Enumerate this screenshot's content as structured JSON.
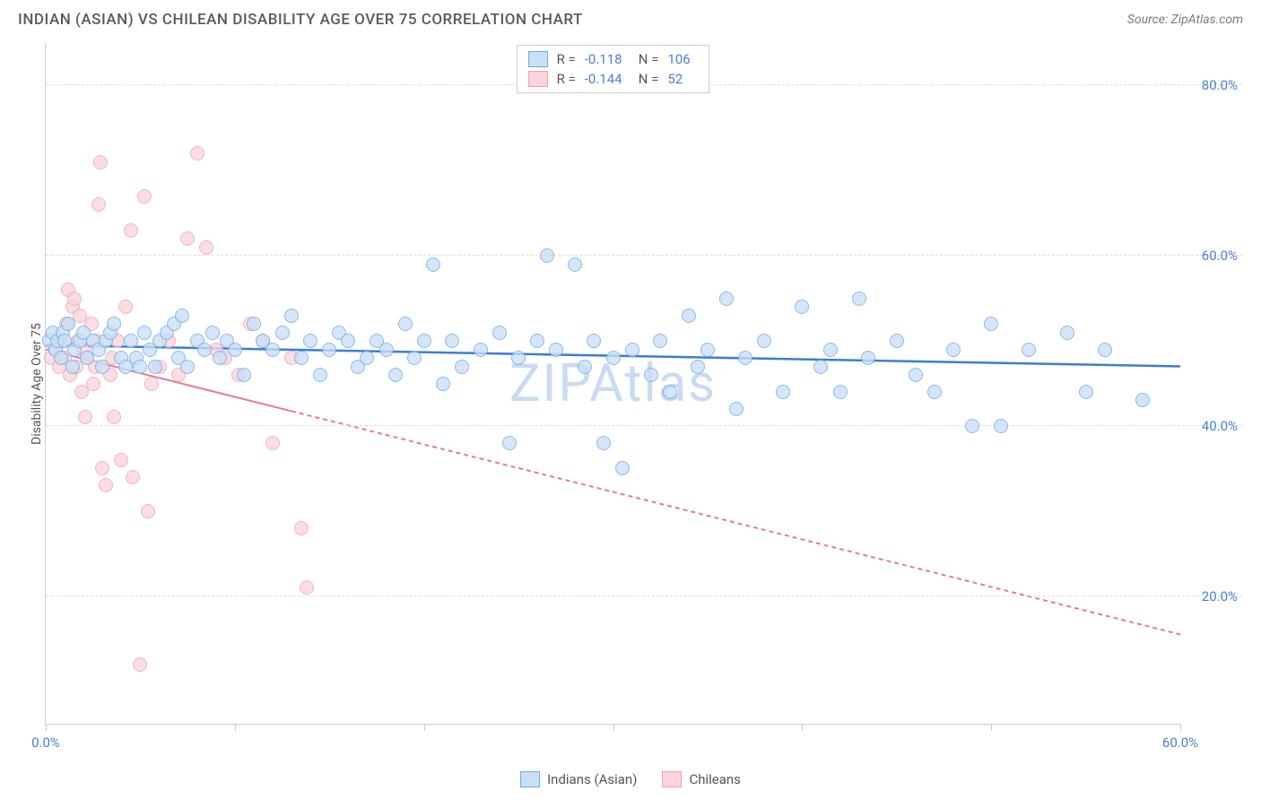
{
  "title": "INDIAN (ASIAN) VS CHILEAN DISABILITY AGE OVER 75 CORRELATION CHART",
  "source": "Source: ZipAtlas.com",
  "watermark": "ZIPAtlas",
  "watermark_color": "#c9dbf2",
  "y_axis_label": "Disability Age Over 75",
  "chart": {
    "type": "scatter",
    "background_color": "#ffffff",
    "border_color": "#cccccc",
    "grid_color": "#dddddd",
    "tick_label_color": "#4a7fd6",
    "axis_label_color": "#555555",
    "xlim": [
      0,
      60
    ],
    "ylim": [
      5,
      85
    ],
    "y_ticks": [
      {
        "value": 20,
        "label": "20.0%"
      },
      {
        "value": 40,
        "label": "40.0%"
      },
      {
        "value": 60,
        "label": "60.0%"
      },
      {
        "value": 80,
        "label": "80.0%"
      }
    ],
    "x_ticks": [
      {
        "value": 0,
        "label": "0.0%"
      },
      {
        "value": 10,
        "label": ""
      },
      {
        "value": 20,
        "label": ""
      },
      {
        "value": 30,
        "label": ""
      },
      {
        "value": 40,
        "label": ""
      },
      {
        "value": 50,
        "label": ""
      },
      {
        "value": 60,
        "label": "60.0%"
      }
    ],
    "series": [
      {
        "name": "Indians (Asian)",
        "R_label": "R =",
        "R": "-0.118",
        "N_label": "N =",
        "N": "106",
        "marker_fill": "#c9dff6",
        "marker_stroke": "#6ea8e6",
        "marker_opacity": 0.78,
        "marker_radius": 8,
        "trend_color": "#3b7dd8",
        "trend_width": 2.5,
        "trend_y_at_xmin": 49.5,
        "trend_y_at_xmax": 47.0,
        "trend_solid_xmax": 60,
        "trend_dash_to_xmax": 60,
        "points": [
          [
            0.2,
            50
          ],
          [
            0.4,
            51
          ],
          [
            0.5,
            49
          ],
          [
            0.6,
            50
          ],
          [
            0.8,
            48
          ],
          [
            0.9,
            51
          ],
          [
            1.0,
            50
          ],
          [
            1.2,
            52
          ],
          [
            1.4,
            47
          ],
          [
            1.5,
            49
          ],
          [
            1.8,
            50
          ],
          [
            2.0,
            51
          ],
          [
            2.2,
            48
          ],
          [
            2.5,
            50
          ],
          [
            2.8,
            49
          ],
          [
            3.0,
            47
          ],
          [
            3.2,
            50
          ],
          [
            3.4,
            51
          ],
          [
            3.6,
            52
          ],
          [
            4.0,
            48
          ],
          [
            4.2,
            47
          ],
          [
            4.5,
            50
          ],
          [
            4.8,
            48
          ],
          [
            5.0,
            47
          ],
          [
            5.2,
            51
          ],
          [
            5.5,
            49
          ],
          [
            5.8,
            47
          ],
          [
            6.0,
            50
          ],
          [
            6.4,
            51
          ],
          [
            6.8,
            52
          ],
          [
            7.0,
            48
          ],
          [
            7.2,
            53
          ],
          [
            7.5,
            47
          ],
          [
            8.0,
            50
          ],
          [
            8.4,
            49
          ],
          [
            8.8,
            51
          ],
          [
            9.2,
            48
          ],
          [
            9.6,
            50
          ],
          [
            10.0,
            49
          ],
          [
            10.5,
            46
          ],
          [
            11.0,
            52
          ],
          [
            11.5,
            50
          ],
          [
            12.0,
            49
          ],
          [
            12.5,
            51
          ],
          [
            13.0,
            53
          ],
          [
            13.5,
            48
          ],
          [
            14.0,
            50
          ],
          [
            14.5,
            46
          ],
          [
            15.0,
            49
          ],
          [
            15.5,
            51
          ],
          [
            16.0,
            50
          ],
          [
            16.5,
            47
          ],
          [
            17.0,
            48
          ],
          [
            17.5,
            50
          ],
          [
            18.0,
            49
          ],
          [
            18.5,
            46
          ],
          [
            19.0,
            52
          ],
          [
            19.5,
            48
          ],
          [
            20.0,
            50
          ],
          [
            20.5,
            59
          ],
          [
            21.0,
            45
          ],
          [
            21.5,
            50
          ],
          [
            22.0,
            47
          ],
          [
            23.0,
            49
          ],
          [
            24.0,
            51
          ],
          [
            24.5,
            38
          ],
          [
            25.0,
            48
          ],
          [
            26.0,
            50
          ],
          [
            26.5,
            60
          ],
          [
            27.0,
            49
          ],
          [
            28.0,
            59
          ],
          [
            28.5,
            47
          ],
          [
            29.0,
            50
          ],
          [
            29.5,
            38
          ],
          [
            30.0,
            48
          ],
          [
            30.5,
            35
          ],
          [
            31.0,
            49
          ],
          [
            32.0,
            46
          ],
          [
            32.5,
            50
          ],
          [
            33.0,
            44
          ],
          [
            34.0,
            53
          ],
          [
            34.5,
            47
          ],
          [
            35.0,
            49
          ],
          [
            36.0,
            55
          ],
          [
            36.5,
            42
          ],
          [
            37.0,
            48
          ],
          [
            38.0,
            50
          ],
          [
            39.0,
            44
          ],
          [
            40.0,
            54
          ],
          [
            41.0,
            47
          ],
          [
            41.5,
            49
          ],
          [
            42.0,
            44
          ],
          [
            43.0,
            55
          ],
          [
            43.5,
            48
          ],
          [
            45.0,
            50
          ],
          [
            46.0,
            46
          ],
          [
            47.0,
            44
          ],
          [
            48.0,
            49
          ],
          [
            49.0,
            40
          ],
          [
            50.0,
            52
          ],
          [
            50.5,
            40
          ],
          [
            52.0,
            49
          ],
          [
            54.0,
            51
          ],
          [
            55.0,
            44
          ],
          [
            56.0,
            49
          ],
          [
            58.0,
            43
          ]
        ]
      },
      {
        "name": "Chileans",
        "R_label": "R =",
        "R": "-0.144",
        "N_label": "N =",
        "N": "52",
        "marker_fill": "#fad4dd",
        "marker_stroke": "#f09fb4",
        "marker_opacity": 0.78,
        "marker_radius": 8,
        "trend_color": "#e67a9a",
        "trend_width": 2,
        "trend_y_at_xmin": 49.0,
        "trend_y_at_xmax": 15.5,
        "trend_solid_xmax": 13,
        "trend_dash_to_xmax": 60,
        "points": [
          [
            0.3,
            48
          ],
          [
            0.5,
            49
          ],
          [
            0.7,
            47
          ],
          [
            0.8,
            50
          ],
          [
            1.0,
            48
          ],
          [
            1.1,
            52
          ],
          [
            1.2,
            56
          ],
          [
            1.3,
            46
          ],
          [
            1.4,
            54
          ],
          [
            1.5,
            55
          ],
          [
            1.6,
            47
          ],
          [
            1.7,
            50
          ],
          [
            1.8,
            53
          ],
          [
            1.9,
            44
          ],
          [
            2.0,
            49
          ],
          [
            2.1,
            41
          ],
          [
            2.2,
            48
          ],
          [
            2.4,
            52
          ],
          [
            2.5,
            45
          ],
          [
            2.6,
            47
          ],
          [
            2.7,
            50
          ],
          [
            2.8,
            66
          ],
          [
            2.9,
            71
          ],
          [
            3.0,
            35
          ],
          [
            3.2,
            33
          ],
          [
            3.4,
            46
          ],
          [
            3.5,
            48
          ],
          [
            3.6,
            41
          ],
          [
            3.8,
            50
          ],
          [
            4.0,
            36
          ],
          [
            4.2,
            54
          ],
          [
            4.5,
            63
          ],
          [
            4.6,
            34
          ],
          [
            5.0,
            12
          ],
          [
            5.2,
            67
          ],
          [
            5.4,
            30
          ],
          [
            5.6,
            45
          ],
          [
            6.0,
            47
          ],
          [
            6.5,
            50
          ],
          [
            7.0,
            46
          ],
          [
            7.5,
            62
          ],
          [
            8.0,
            72
          ],
          [
            8.5,
            61
          ],
          [
            9.0,
            49
          ],
          [
            9.5,
            48
          ],
          [
            10.2,
            46
          ],
          [
            10.8,
            52
          ],
          [
            11.5,
            50
          ],
          [
            12.0,
            38
          ],
          [
            13.0,
            48
          ],
          [
            13.5,
            28
          ],
          [
            13.8,
            21
          ]
        ]
      }
    ]
  },
  "legend_bottom": [
    {
      "label": "Indians (Asian)",
      "fill": "#c9dff6",
      "stroke": "#6ea8e6"
    },
    {
      "label": "Chileans",
      "fill": "#fad4dd",
      "stroke": "#f09fb4"
    }
  ]
}
